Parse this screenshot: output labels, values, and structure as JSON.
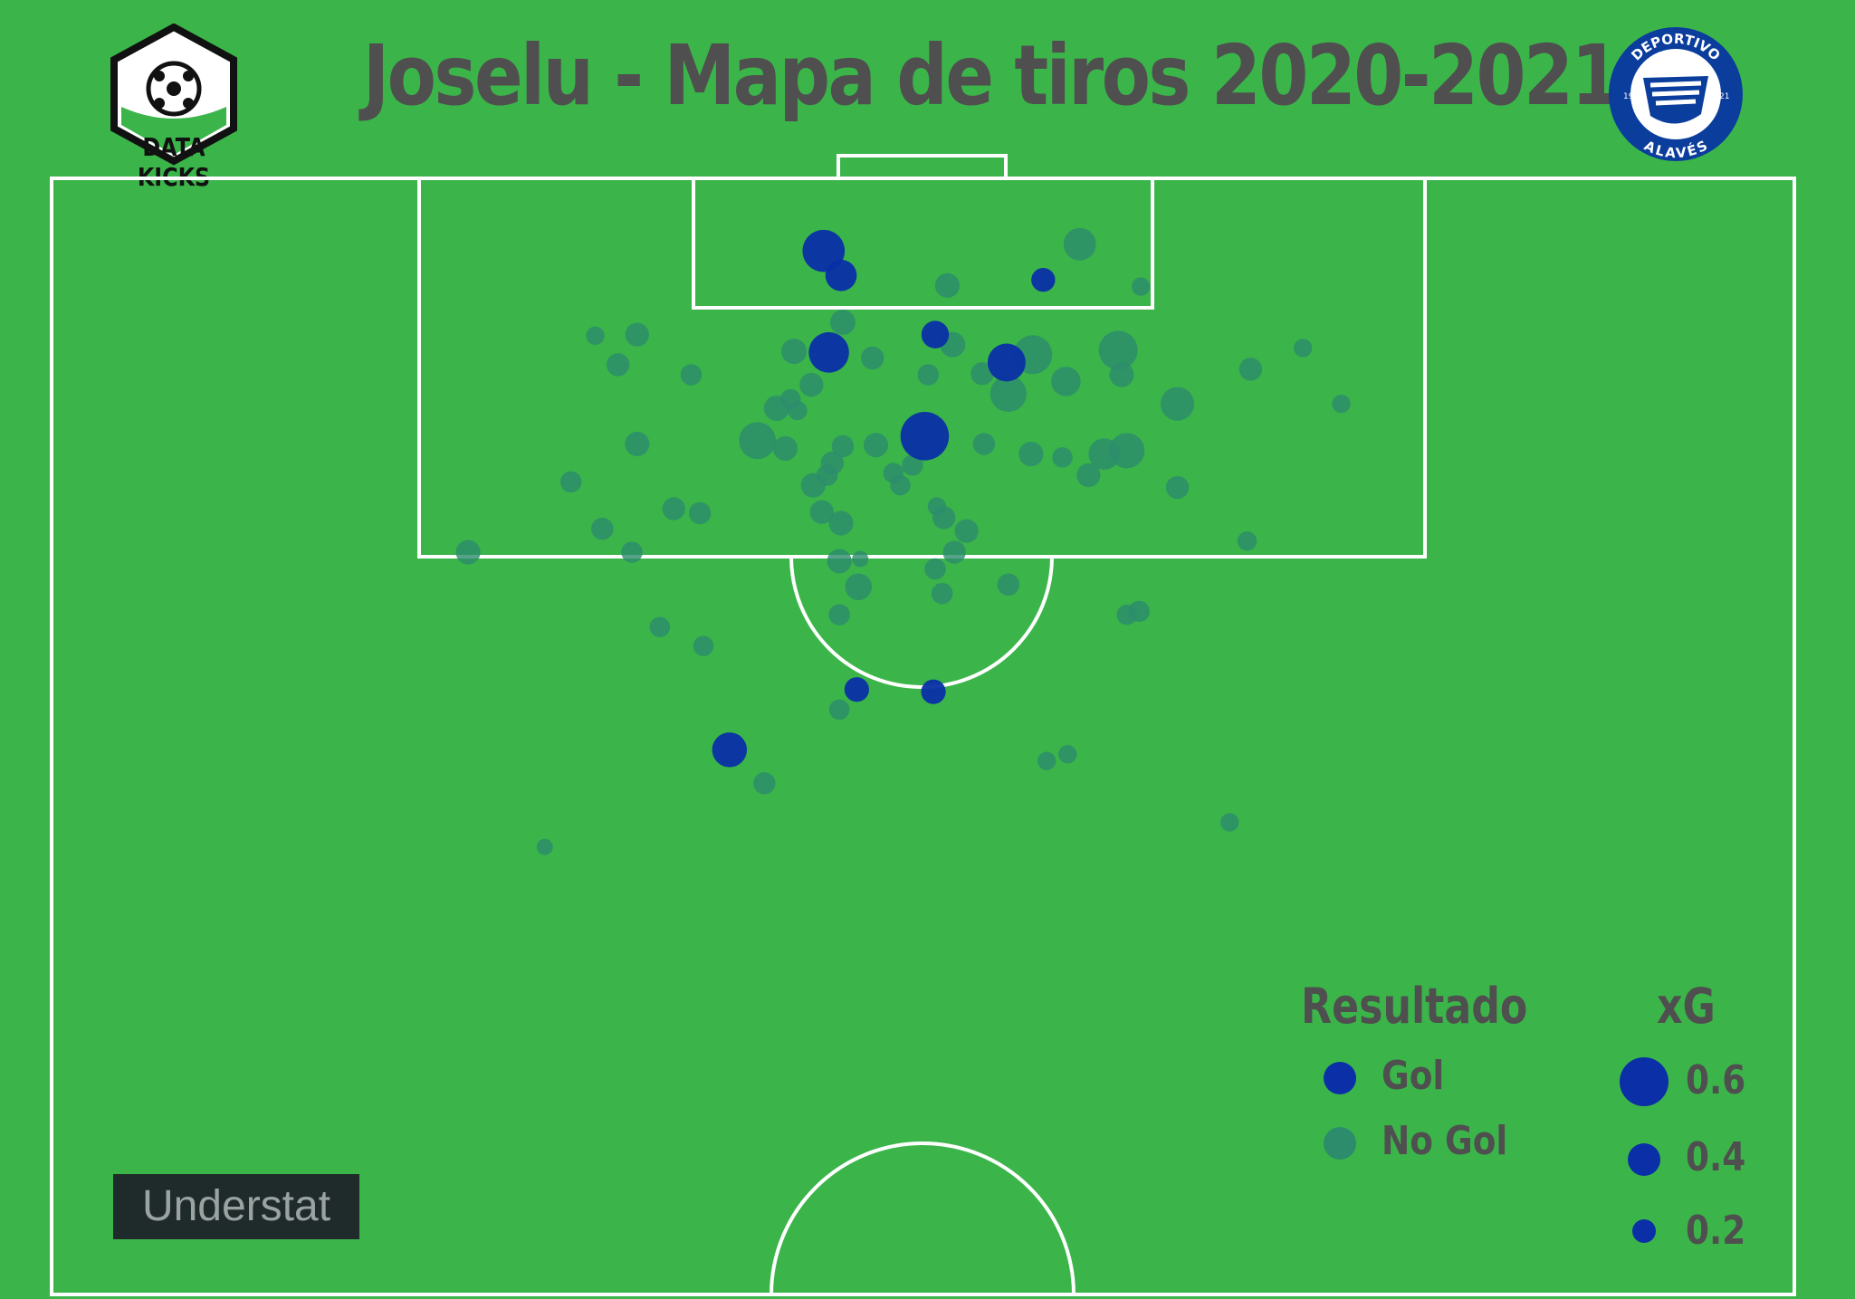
{
  "title": "Joselu - Mapa de tiros 2020-2021",
  "brand": {
    "name": "DATA KICKS",
    "icon": "soccer-ball-hexagon-icon"
  },
  "crest": {
    "text_top": "DEPORTIVO",
    "text_bottom": "ALAVÉS",
    "year_left": "19",
    "year_right": "21",
    "icon": "alaves-crest-icon"
  },
  "colors": {
    "background": "#3bb54a",
    "goal": "#0a2fa6",
    "no_goal": "#2c8c6c",
    "lines": "#ffffff",
    "text": "#4f4f4f"
  },
  "legend": {
    "result_title": "Resultado",
    "result_items": [
      {
        "label": "Gol",
        "color": "#0a2fa6"
      },
      {
        "label": "No Gol",
        "color": "#2c8c6c"
      }
    ],
    "xg_title": "xG",
    "xg_items": [
      {
        "label": "0.6",
        "value": 0.6
      },
      {
        "label": "0.4",
        "value": 0.4
      },
      {
        "label": "0.2",
        "value": 0.2
      }
    ]
  },
  "source": "Understat",
  "chart_data": {
    "type": "scatter",
    "title": "Joselu - Mapa de tiros 2020-2021",
    "x_units": "pitch width (0 = left touchline, 1 = right touchline)",
    "y_units": "distance from goal line (fraction of half pitch)",
    "series": [
      {
        "name": "Gol",
        "points": [
          {
            "x": 0.443,
            "y": 0.065,
            "xg": 0.47
          },
          {
            "x": 0.453,
            "y": 0.087,
            "xg": 0.26
          },
          {
            "x": 0.569,
            "y": 0.091,
            "xg": 0.15
          },
          {
            "x": 0.507,
            "y": 0.14,
            "xg": 0.2
          },
          {
            "x": 0.446,
            "y": 0.156,
            "xg": 0.43
          },
          {
            "x": 0.548,
            "y": 0.165,
            "xg": 0.38
          },
          {
            "x": 0.501,
            "y": 0.231,
            "xg": 0.62
          },
          {
            "x": 0.462,
            "y": 0.458,
            "xg": 0.16
          },
          {
            "x": 0.506,
            "y": 0.46,
            "xg": 0.16
          },
          {
            "x": 0.389,
            "y": 0.512,
            "xg": 0.32
          }
        ]
      },
      {
        "name": "No Gol",
        "points": [
          {
            "x": 0.59,
            "y": 0.059,
            "xg": 0.28
          },
          {
            "x": 0.514,
            "y": 0.096,
            "xg": 0.16
          },
          {
            "x": 0.625,
            "y": 0.097,
            "xg": 0.09
          },
          {
            "x": 0.454,
            "y": 0.129,
            "xg": 0.17
          },
          {
            "x": 0.336,
            "y": 0.14,
            "xg": 0.15
          },
          {
            "x": 0.312,
            "y": 0.141,
            "xg": 0.09
          },
          {
            "x": 0.517,
            "y": 0.149,
            "xg": 0.17
          },
          {
            "x": 0.563,
            "y": 0.158,
            "xg": 0.4
          },
          {
            "x": 0.612,
            "y": 0.154,
            "xg": 0.4
          },
          {
            "x": 0.426,
            "y": 0.155,
            "xg": 0.17
          },
          {
            "x": 0.471,
            "y": 0.161,
            "xg": 0.14
          },
          {
            "x": 0.325,
            "y": 0.167,
            "xg": 0.14
          },
          {
            "x": 0.688,
            "y": 0.171,
            "xg": 0.14
          },
          {
            "x": 0.718,
            "y": 0.152,
            "xg": 0.09
          },
          {
            "x": 0.367,
            "y": 0.176,
            "xg": 0.12
          },
          {
            "x": 0.503,
            "y": 0.176,
            "xg": 0.12
          },
          {
            "x": 0.534,
            "y": 0.175,
            "xg": 0.14
          },
          {
            "x": 0.614,
            "y": 0.176,
            "xg": 0.16
          },
          {
            "x": 0.582,
            "y": 0.182,
            "xg": 0.23
          },
          {
            "x": 0.436,
            "y": 0.185,
            "xg": 0.15
          },
          {
            "x": 0.549,
            "y": 0.193,
            "xg": 0.35
          },
          {
            "x": 0.424,
            "y": 0.198,
            "xg": 0.11
          },
          {
            "x": 0.416,
            "y": 0.206,
            "xg": 0.17
          },
          {
            "x": 0.428,
            "y": 0.208,
            "xg": 0.1
          },
          {
            "x": 0.74,
            "y": 0.202,
            "xg": 0.09
          },
          {
            "x": 0.646,
            "y": 0.202,
            "xg": 0.3
          },
          {
            "x": 0.405,
            "y": 0.235,
            "xg": 0.36
          },
          {
            "x": 0.336,
            "y": 0.238,
            "xg": 0.16
          },
          {
            "x": 0.421,
            "y": 0.242,
            "xg": 0.16
          },
          {
            "x": 0.454,
            "y": 0.24,
            "xg": 0.13
          },
          {
            "x": 0.473,
            "y": 0.239,
            "xg": 0.16
          },
          {
            "x": 0.535,
            "y": 0.238,
            "xg": 0.13
          },
          {
            "x": 0.562,
            "y": 0.247,
            "xg": 0.16
          },
          {
            "x": 0.58,
            "y": 0.25,
            "xg": 0.11
          },
          {
            "x": 0.604,
            "y": 0.247,
            "xg": 0.26
          },
          {
            "x": 0.617,
            "y": 0.244,
            "xg": 0.33
          },
          {
            "x": 0.448,
            "y": 0.255,
            "xg": 0.14
          },
          {
            "x": 0.445,
            "y": 0.266,
            "xg": 0.12
          },
          {
            "x": 0.483,
            "y": 0.264,
            "xg": 0.11
          },
          {
            "x": 0.494,
            "y": 0.257,
            "xg": 0.12
          },
          {
            "x": 0.595,
            "y": 0.266,
            "xg": 0.15
          },
          {
            "x": 0.298,
            "y": 0.272,
            "xg": 0.12
          },
          {
            "x": 0.437,
            "y": 0.275,
            "xg": 0.16
          },
          {
            "x": 0.487,
            "y": 0.275,
            "xg": 0.11
          },
          {
            "x": 0.646,
            "y": 0.277,
            "xg": 0.14
          },
          {
            "x": 0.357,
            "y": 0.296,
            "xg": 0.14
          },
          {
            "x": 0.442,
            "y": 0.299,
            "xg": 0.15
          },
          {
            "x": 0.372,
            "y": 0.3,
            "xg": 0.13
          },
          {
            "x": 0.508,
            "y": 0.294,
            "xg": 0.09
          },
          {
            "x": 0.453,
            "y": 0.309,
            "xg": 0.16
          },
          {
            "x": 0.512,
            "y": 0.304,
            "xg": 0.14
          },
          {
            "x": 0.316,
            "y": 0.314,
            "xg": 0.13
          },
          {
            "x": 0.525,
            "y": 0.316,
            "xg": 0.15
          },
          {
            "x": 0.239,
            "y": 0.335,
            "xg": 0.16
          },
          {
            "x": 0.333,
            "y": 0.335,
            "xg": 0.12
          },
          {
            "x": 0.518,
            "y": 0.335,
            "xg": 0.14
          },
          {
            "x": 0.686,
            "y": 0.325,
            "xg": 0.1
          },
          {
            "x": 0.452,
            "y": 0.343,
            "xg": 0.16
          },
          {
            "x": 0.464,
            "y": 0.341,
            "xg": 0.07
          },
          {
            "x": 0.507,
            "y": 0.35,
            "xg": 0.12
          },
          {
            "x": 0.549,
            "y": 0.364,
            "xg": 0.13
          },
          {
            "x": 0.463,
            "y": 0.366,
            "xg": 0.19
          },
          {
            "x": 0.511,
            "y": 0.372,
            "xg": 0.12
          },
          {
            "x": 0.452,
            "y": 0.391,
            "xg": 0.12
          },
          {
            "x": 0.624,
            "y": 0.388,
            "xg": 0.12
          },
          {
            "x": 0.617,
            "y": 0.391,
            "xg": 0.11
          },
          {
            "x": 0.349,
            "y": 0.402,
            "xg": 0.11
          },
          {
            "x": 0.374,
            "y": 0.419,
            "xg": 0.11
          },
          {
            "x": 0.452,
            "y": 0.476,
            "xg": 0.11
          },
          {
            "x": 0.583,
            "y": 0.516,
            "xg": 0.09
          },
          {
            "x": 0.571,
            "y": 0.522,
            "xg": 0.09
          },
          {
            "x": 0.409,
            "y": 0.542,
            "xg": 0.13
          },
          {
            "x": 0.676,
            "y": 0.577,
            "xg": 0.09
          },
          {
            "x": 0.283,
            "y": 0.599,
            "xg": 0.07
          }
        ]
      }
    ]
  }
}
